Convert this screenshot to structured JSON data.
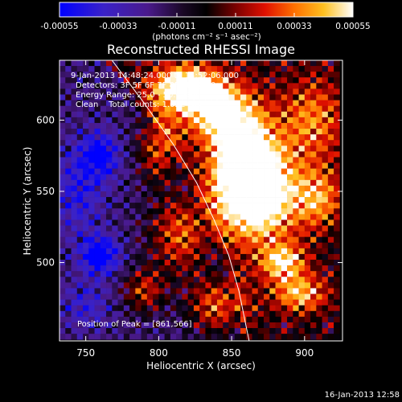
{
  "chart_data": {
    "type": "heatmap",
    "title": "Reconstructed RHESSI Image",
    "xlabel": "Heliocentric X (arcsec)",
    "ylabel": "Heliocentric Y (arcsec)",
    "xlim": [
      732,
      926
    ],
    "ylim": [
      445,
      642
    ],
    "x_ticks": [
      750,
      800,
      850,
      900
    ],
    "y_ticks": [
      500,
      550,
      600
    ],
    "colorbar": {
      "range": [
        -0.00055,
        0.00055
      ],
      "tick_values": [
        -0.00055,
        -0.00033,
        -0.00011,
        0.00011,
        0.00033,
        0.00055
      ],
      "tick_labels": [
        "-0.00055",
        "-0.00033",
        "-0.00011",
        "0.00011",
        "0.00033",
        "0.00055"
      ],
      "unit_label": "(photons cm⁻² s⁻¹ asec⁻²)"
    },
    "annotations": {
      "time_range": "9-Jan-2013 14:48:24.000 to 14:52:06.000",
      "detectors": "Detectors: 3F 5F 6F 7F 8F 9F, Att 0",
      "energy_range": "Energy Range: 25.0 - 50.0 keV",
      "method": "Clean    Total counts: 1.02E+04",
      "peak": "Position of Peak = [861,566]"
    },
    "peak_position": [
      861,
      566
    ],
    "timestamp": "16-Jan-2013 12:58",
    "limb_points": [
      [
        768,
        642
      ],
      [
        790,
        612
      ],
      [
        810,
        583
      ],
      [
        826,
        556
      ],
      [
        838,
        530
      ],
      [
        848,
        505
      ],
      [
        855,
        480
      ],
      [
        860,
        455
      ],
      [
        862,
        445
      ]
    ],
    "blobs": [
      {
        "x": 858,
        "y": 568,
        "sx": 14,
        "sy": 26,
        "amp": 0.0009
      },
      {
        "x": 818,
        "y": 622,
        "sx": 16,
        "sy": 11,
        "amp": 0.00078
      },
      {
        "x": 873,
        "y": 548,
        "sx": 19,
        "sy": 23,
        "amp": 0.0006
      },
      {
        "x": 840,
        "y": 605,
        "sx": 15,
        "sy": 14,
        "amp": 0.00055
      },
      {
        "x": 885,
        "y": 500,
        "sx": 11,
        "sy": 9,
        "amp": 0.0005
      },
      {
        "x": 897,
        "y": 478,
        "sx": 13,
        "sy": 9,
        "amp": 0.00045
      },
      {
        "x": 800,
        "y": 580,
        "sx": 10,
        "sy": 16,
        "amp": 0.00042
      },
      {
        "x": 815,
        "y": 520,
        "sx": 15,
        "sy": 20,
        "amp": 0.00045
      },
      {
        "x": 840,
        "y": 470,
        "sx": 14,
        "sy": 14,
        "amp": 0.00045
      },
      {
        "x": 905,
        "y": 600,
        "sx": 16,
        "sy": 20,
        "amp": 0.00035
      },
      {
        "x": 910,
        "y": 545,
        "sx": 11,
        "sy": 14,
        "amp": 0.00036
      },
      {
        "x": 790,
        "y": 480,
        "sx": 10,
        "sy": 11,
        "amp": 0.00036
      },
      {
        "x": 760,
        "y": 575,
        "sx": 9,
        "sy": 11,
        "amp": -0.0004
      },
      {
        "x": 760,
        "y": 505,
        "sx": 9,
        "sy": 9,
        "amp": -0.0005
      },
      {
        "x": 745,
        "y": 550,
        "sx": 12,
        "sy": 22,
        "amp": -0.00025
      },
      {
        "x": 750,
        "y": 470,
        "sx": 12,
        "sy": 12,
        "amp": -0.0002
      }
    ]
  }
}
